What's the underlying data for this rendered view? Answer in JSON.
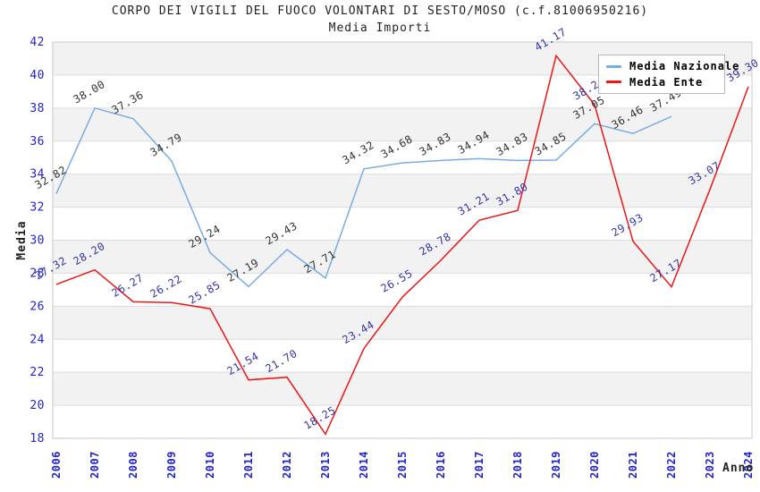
{
  "title": "CORPO DEI VIGILI DEL FUOCO VOLONTARI DI SESTO/MOSO (c.f.81006950216)",
  "subtitle": "Media Importi",
  "colors": {
    "title_text": "#222222",
    "axis_tick_blue": "#2222CC",
    "grid_line": "#DCDCDC",
    "band_gray": "#F2F2F2",
    "plot_border": "#C8C8C8",
    "axis_title": "#222222",
    "legend_border": "#B8B8B8",
    "legend_bg": "#FFFFFF"
  },
  "chart_data": {
    "type": "line",
    "x": [
      2006,
      2007,
      2008,
      2009,
      2010,
      2011,
      2012,
      2013,
      2014,
      2015,
      2016,
      2017,
      2018,
      2019,
      2020,
      2021,
      2022,
      2023,
      2024
    ],
    "xlabel": "Anno",
    "ylabel": "Media",
    "ylim": [
      18,
      42
    ],
    "ytick_step": 2,
    "grid": "horizontal",
    "banding": true,
    "legend_position": "top-right",
    "series": [
      {
        "name": "Media Nazionale",
        "color": "#78ADE4",
        "label_color": "#333333",
        "values": [
          32.82,
          38.0,
          37.36,
          34.79,
          29.24,
          27.19,
          29.43,
          27.71,
          34.32,
          34.68,
          34.83,
          34.94,
          34.83,
          34.85,
          37.05,
          36.46,
          37.49,
          null,
          null
        ],
        "labels": [
          "32.82",
          "38.00",
          "37.36",
          "34.79",
          "29.24",
          "27.19",
          "29.43",
          "27.71",
          "34.32",
          "34.68",
          "34.83",
          "34.94",
          "34.83",
          "34.85",
          "37.05",
          "36.46",
          "37.49",
          "",
          ""
        ]
      },
      {
        "name": "Media Ente",
        "color": "#ED1515",
        "label_color": "#3434AD",
        "values": [
          27.32,
          28.2,
          26.27,
          26.22,
          25.85,
          21.54,
          21.7,
          18.25,
          23.44,
          26.55,
          28.78,
          31.21,
          31.8,
          41.17,
          38.2,
          29.93,
          27.17,
          33.07,
          39.3
        ],
        "labels": [
          "27.32",
          "28.20",
          "26.27",
          "26.22",
          "25.85",
          "21.54",
          "21.70",
          "18.25",
          "23.44",
          "26.55",
          "28.78",
          "31.21",
          "31.80",
          "41.17",
          "38.2",
          "29.93",
          "27.17",
          "33.07",
          "39.30"
        ]
      }
    ]
  }
}
